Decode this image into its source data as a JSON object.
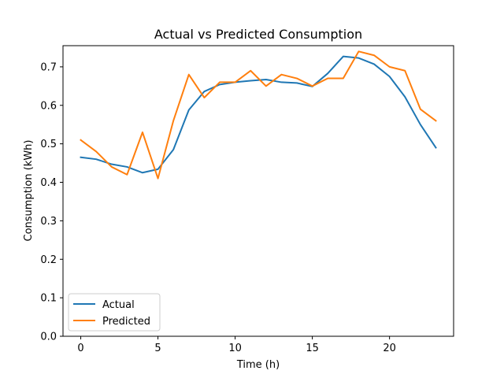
{
  "chart_data": {
    "type": "line",
    "title": "Actual vs Predicted Consumption",
    "xlabel": "Time (h)",
    "ylabel": "Consumption (kWh)",
    "xlim": [
      -1.15,
      24.15
    ],
    "ylim": [
      0,
      0.755
    ],
    "x_ticks": [
      0,
      5,
      10,
      15,
      20
    ],
    "x_tick_labels": [
      "0",
      "5",
      "10",
      "15",
      "20"
    ],
    "y_ticks": [
      0,
      0.1,
      0.2,
      0.3,
      0.4,
      0.5,
      0.6,
      0.7
    ],
    "y_tick_labels": [
      "0.0",
      "0.1",
      "0.2",
      "0.3",
      "0.4",
      "0.5",
      "0.6",
      "0.7"
    ],
    "grid": false,
    "legend_position": "lower-left",
    "x": [
      0,
      1,
      2,
      3,
      4,
      5,
      6,
      7,
      8,
      9,
      10,
      11,
      12,
      13,
      14,
      15,
      16,
      17,
      18,
      19,
      20,
      21,
      22,
      23
    ],
    "series": [
      {
        "name": "Actual",
        "color": "#1f77b4",
        "values": [
          0.465,
          0.46,
          0.447,
          0.44,
          0.425,
          0.434,
          0.485,
          0.588,
          0.636,
          0.654,
          0.66,
          0.664,
          0.667,
          0.66,
          0.658,
          0.649,
          0.683,
          0.727,
          0.723,
          0.707,
          0.675,
          0.622,
          0.55,
          0.49
        ]
      },
      {
        "name": "Predicted",
        "color": "#ff7f0e",
        "values": [
          0.51,
          0.48,
          0.44,
          0.42,
          0.53,
          0.41,
          0.56,
          0.68,
          0.62,
          0.66,
          0.66,
          0.69,
          0.65,
          0.68,
          0.67,
          0.65,
          0.67,
          0.67,
          0.74,
          0.73,
          0.7,
          0.69,
          0.59,
          0.56
        ]
      }
    ]
  }
}
